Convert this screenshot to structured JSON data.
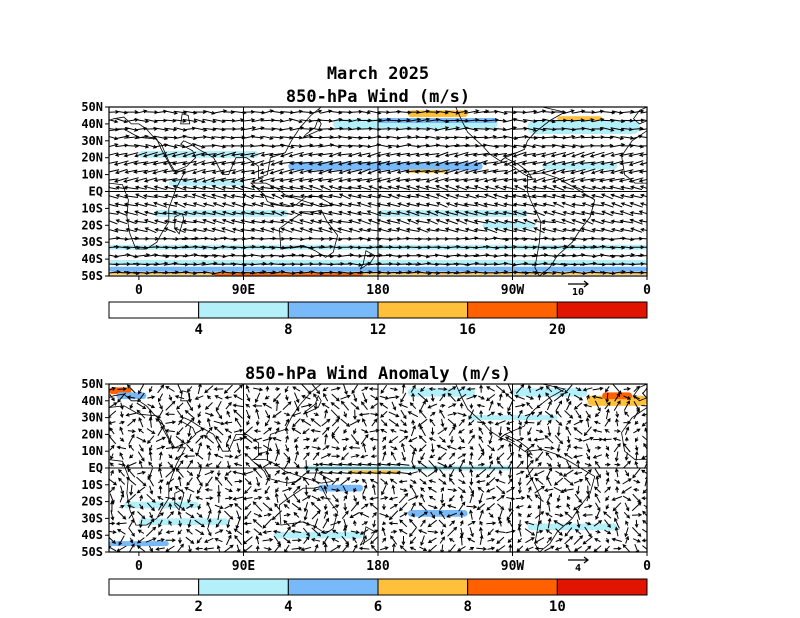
{
  "suptitle": "March 2025",
  "panels": [
    {
      "id": "total",
      "title": "850-hPa Wind (m/s)",
      "lat_ticks": [
        "50N",
        "40N",
        "30N",
        "20N",
        "10N",
        "EQ",
        "10S",
        "20S",
        "30S",
        "40S",
        "50S"
      ],
      "lon_ticks": [
        "0",
        "90E",
        "180",
        "90W",
        "0"
      ],
      "ref_vector": "10",
      "colorbar": {
        "colors": [
          "#ffffff",
          "#b4f0fa",
          "#78b9fa",
          "#ffc03c",
          "#ff6000",
          "#e11400"
        ],
        "labels": [
          "4",
          "8",
          "12",
          "16",
          "20"
        ]
      },
      "seed": 7,
      "bands": [
        {
          "lat": 46,
          "lon0": 200,
          "lon1": 240,
          "dlat": 4,
          "c": 3
        },
        {
          "lat": 43,
          "lon0": 300,
          "lon1": 330,
          "dlat": 3,
          "c": 3
        },
        {
          "lat": 40,
          "lon0": 150,
          "lon1": 260,
          "dlat": 6,
          "c": 1
        },
        {
          "lat": 38,
          "lon0": 280,
          "lon1": 355,
          "dlat": 8,
          "c": 1
        },
        {
          "lat": 42,
          "lon0": 180,
          "lon1": 260,
          "dlat": 3,
          "c": 2
        },
        {
          "lat": 15,
          "lon0": 120,
          "lon1": 250,
          "dlat": 5,
          "c": 2
        },
        {
          "lat": 12,
          "lon0": 200,
          "lon1": 225,
          "dlat": 2,
          "c": 3
        },
        {
          "lat": 15,
          "lon0": 290,
          "lon1": 340,
          "dlat": 4,
          "c": 1
        },
        {
          "lat": 22,
          "lon0": 20,
          "lon1": 100,
          "dlat": 4,
          "c": 1
        },
        {
          "lat": 5,
          "lon0": 40,
          "lon1": 90,
          "dlat": 3,
          "c": 1
        },
        {
          "lat": -13,
          "lon0": 30,
          "lon1": 120,
          "dlat": 4,
          "c": 1
        },
        {
          "lat": -13,
          "lon0": 180,
          "lon1": 280,
          "dlat": 4,
          "c": 1
        },
        {
          "lat": -20,
          "lon0": 250,
          "lon1": 285,
          "dlat": 4,
          "c": 1
        },
        {
          "lat": -33,
          "lon0": 0,
          "lon1": 360,
          "dlat": 3,
          "c": 1
        },
        {
          "lat": -42,
          "lon0": 0,
          "lon1": 360,
          "dlat": 3,
          "c": 1
        },
        {
          "lat": -46,
          "lon0": 0,
          "lon1": 360,
          "dlat": 3,
          "c": 2
        },
        {
          "lat": -48.5,
          "lon0": 0,
          "lon1": 360,
          "dlat": 1.5,
          "c": 3
        },
        {
          "lat": -49,
          "lon0": 70,
          "lon1": 170,
          "dlat": 1.2,
          "c": 4
        }
      ]
    },
    {
      "id": "anomaly",
      "title": "850-hPa Wind Anomaly (m/s)",
      "lat_ticks": [
        "50N",
        "40N",
        "30N",
        "20N",
        "10N",
        "EQ",
        "10S",
        "20S",
        "30S",
        "40S",
        "50S"
      ],
      "lon_ticks": [
        "0",
        "90E",
        "180",
        "90W",
        "0"
      ],
      "ref_vector": "4",
      "colorbar": {
        "colors": [
          "#ffffff",
          "#b4f0fa",
          "#78b9fa",
          "#ffc03c",
          "#ff6000",
          "#e11400"
        ],
        "labels": [
          "2",
          "4",
          "6",
          "8",
          "10"
        ]
      },
      "seed": 13,
      "bands": [
        {
          "lat": 46,
          "lon0": 0,
          "lon1": 15,
          "dlat": 4,
          "c": 4
        },
        {
          "lat": 43,
          "lon0": 5,
          "lon1": 25,
          "dlat": 4,
          "c": 2
        },
        {
          "lat": 40,
          "lon0": 320,
          "lon1": 360,
          "dlat": 6,
          "c": 3
        },
        {
          "lat": 43,
          "lon0": 330,
          "lon1": 350,
          "dlat": 4,
          "c": 4
        },
        {
          "lat": 45,
          "lon0": 200,
          "lon1": 245,
          "dlat": 5,
          "c": 1
        },
        {
          "lat": 45,
          "lon0": 270,
          "lon1": 320,
          "dlat": 5,
          "c": 1
        },
        {
          "lat": 30,
          "lon0": 240,
          "lon1": 300,
          "dlat": 3,
          "c": 1
        },
        {
          "lat": -2,
          "lon0": 160,
          "lon1": 195,
          "dlat": 3,
          "c": 3
        },
        {
          "lat": 0,
          "lon0": 130,
          "lon1": 270,
          "dlat": 3,
          "c": 1
        },
        {
          "lat": -12,
          "lon0": 140,
          "lon1": 170,
          "dlat": 4,
          "c": 2
        },
        {
          "lat": -22,
          "lon0": 10,
          "lon1": 60,
          "dlat": 4,
          "c": 1
        },
        {
          "lat": -32,
          "lon0": 20,
          "lon1": 80,
          "dlat": 4,
          "c": 1
        },
        {
          "lat": -27,
          "lon0": 200,
          "lon1": 240,
          "dlat": 4,
          "c": 2
        },
        {
          "lat": -40,
          "lon0": 110,
          "lon1": 170,
          "dlat": 4,
          "c": 1
        },
        {
          "lat": -45,
          "lon0": 0,
          "lon1": 40,
          "dlat": 3,
          "c": 2
        },
        {
          "lat": -35,
          "lon0": 280,
          "lon1": 340,
          "dlat": 4,
          "c": 1
        }
      ]
    }
  ],
  "land": [
    {
      "name": "north-america",
      "pts": [
        [
          190,
          65
        ],
        [
          215,
          60
        ],
        [
          240,
          60
        ],
        [
          265,
          55
        ],
        [
          290,
          50
        ],
        [
          305,
          47
        ],
        [
          295,
          42
        ],
        [
          285,
          35
        ],
        [
          280,
          30
        ],
        [
          278,
          25
        ],
        [
          265,
          20
        ],
        [
          262,
          18
        ],
        [
          255,
          22
        ],
        [
          250,
          27
        ],
        [
          240,
          35
        ],
        [
          236,
          42
        ],
        [
          232,
          50
        ],
        [
          220,
          58
        ],
        [
          200,
          60
        ],
        [
          190,
          65
        ]
      ]
    },
    {
      "name": "central-america",
      "pts": [
        [
          262,
          18
        ],
        [
          270,
          15
        ],
        [
          278,
          10
        ],
        [
          283,
          8
        ],
        [
          280,
          12
        ],
        [
          274,
          16
        ],
        [
          265,
          20
        ],
        [
          262,
          18
        ]
      ]
    },
    {
      "name": "south-america",
      "pts": [
        [
          280,
          10
        ],
        [
          290,
          11
        ],
        [
          300,
          8
        ],
        [
          310,
          3
        ],
        [
          325,
          -5
        ],
        [
          322,
          -15
        ],
        [
          315,
          -23
        ],
        [
          310,
          -30
        ],
        [
          300,
          -38
        ],
        [
          295,
          -45
        ],
        [
          288,
          -50
        ],
        [
          285,
          -45
        ],
        [
          288,
          -30
        ],
        [
          289,
          -18
        ],
        [
          282,
          -5
        ],
        [
          280,
          0
        ],
        [
          280,
          10
        ]
      ]
    },
    {
      "name": "eurasia",
      "pts": [
        [
          0,
          55
        ],
        [
          10,
          55
        ],
        [
          30,
          55
        ],
        [
          60,
          55
        ],
        [
          100,
          55
        ],
        [
          140,
          55
        ],
        [
          165,
          60
        ],
        [
          180,
          65
        ],
        [
          160,
          58
        ],
        [
          142,
          50
        ],
        [
          135,
          45
        ],
        [
          128,
          38
        ],
        [
          122,
          30
        ],
        [
          118,
          23
        ],
        [
          108,
          20
        ],
        [
          106,
          10
        ],
        [
          100,
          8
        ],
        [
          100,
          15
        ],
        [
          92,
          20
        ],
        [
          85,
          20
        ],
        [
          80,
          10
        ],
        [
          76,
          10
        ],
        [
          70,
          20
        ],
        [
          60,
          25
        ],
        [
          55,
          28
        ],
        [
          50,
          30
        ],
        [
          48,
          28
        ],
        [
          56,
          24
        ],
        [
          58,
          20
        ],
        [
          52,
          15
        ],
        [
          44,
          12
        ],
        [
          40,
          18
        ],
        [
          35,
          28
        ],
        [
          30,
          32
        ],
        [
          25,
          37
        ],
        [
          20,
          40
        ],
        [
          15,
          40
        ],
        [
          10,
          44
        ],
        [
          3,
          43
        ],
        [
          -5,
          40
        ],
        [
          -9,
          43
        ],
        [
          -5,
          48
        ],
        [
          0,
          50
        ],
        [
          0,
          55
        ]
      ]
    },
    {
      "name": "africa",
      "pts": [
        [
          -17,
          21
        ],
        [
          -10,
          30
        ],
        [
          0,
          36
        ],
        [
          10,
          37
        ],
        [
          20,
          32
        ],
        [
          32,
          31
        ],
        [
          35,
          25
        ],
        [
          43,
          12
        ],
        [
          51,
          12
        ],
        [
          45,
          2
        ],
        [
          40,
          -10
        ],
        [
          40,
          -18
        ],
        [
          35,
          -25
        ],
        [
          32,
          -30
        ],
        [
          25,
          -34
        ],
        [
          18,
          -34
        ],
        [
          14,
          -25
        ],
        [
          12,
          -15
        ],
        [
          13,
          -5
        ],
        [
          9,
          4
        ],
        [
          0,
          5
        ],
        [
          -8,
          5
        ],
        [
          -15,
          10
        ],
        [
          -17,
          21
        ]
      ]
    },
    {
      "name": "australia",
      "pts": [
        [
          114,
          -22
        ],
        [
          120,
          -18
        ],
        [
          130,
          -12
        ],
        [
          137,
          -12
        ],
        [
          142,
          -11
        ],
        [
          146,
          -18
        ],
        [
          153,
          -26
        ],
        [
          150,
          -36
        ],
        [
          145,
          -39
        ],
        [
          138,
          -35
        ],
        [
          130,
          -32
        ],
        [
          115,
          -34
        ],
        [
          114,
          -22
        ]
      ]
    },
    {
      "name": "indonesia",
      "pts": [
        [
          95,
          5
        ],
        [
          104,
          -2
        ],
        [
          106,
          -6
        ],
        [
          114,
          -8
        ],
        [
          120,
          -9
        ],
        [
          125,
          -8
        ],
        [
          132,
          -3
        ],
        [
          140,
          -3
        ],
        [
          150,
          -8
        ],
        [
          142,
          -9
        ],
        [
          128,
          -5
        ],
        [
          118,
          -2
        ],
        [
          112,
          2
        ],
        [
          105,
          5
        ],
        [
          95,
          5
        ]
      ]
    },
    {
      "name": "japan",
      "pts": [
        [
          130,
          32
        ],
        [
          135,
          34
        ],
        [
          140,
          36
        ],
        [
          142,
          40
        ],
        [
          140,
          43
        ],
        [
          138,
          38
        ],
        [
          132,
          34
        ],
        [
          130,
          32
        ]
      ]
    },
    {
      "name": "madagascar",
      "pts": [
        [
          44,
          -15
        ],
        [
          49,
          -13
        ],
        [
          50,
          -16
        ],
        [
          47,
          -25
        ],
        [
          44,
          -22
        ],
        [
          44,
          -15
        ]
      ]
    },
    {
      "name": "new-zealand",
      "pts": [
        [
          172,
          -35
        ],
        [
          178,
          -38
        ],
        [
          175,
          -42
        ],
        [
          168,
          -46
        ],
        [
          170,
          -43
        ],
        [
          172,
          -35
        ]
      ]
    },
    {
      "name": "great-britain",
      "pts": [
        [
          -5,
          50
        ],
        [
          1,
          51
        ],
        [
          0,
          54
        ],
        [
          -3,
          58
        ],
        [
          -5,
          56
        ],
        [
          -5,
          50
        ]
      ]
    },
    {
      "name": "arabian-sea-lakes",
      "pts": [
        [
          48,
          40
        ],
        [
          54,
          40
        ],
        [
          53,
          45
        ],
        [
          49,
          46
        ],
        [
          48,
          40
        ]
      ]
    }
  ]
}
